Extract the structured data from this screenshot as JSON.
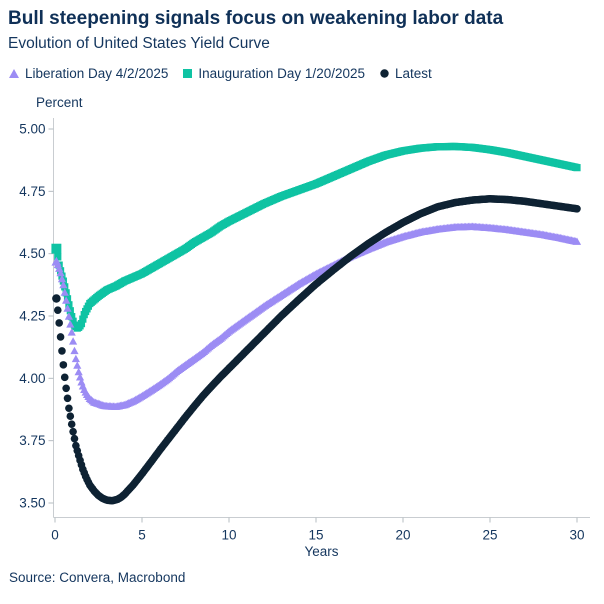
{
  "header": {
    "title": "Bull steepening signals focus on weakening labor data",
    "subtitle": "Evolution of United States Yield Curve"
  },
  "legend": {
    "items": [
      {
        "label": "Liberation Day 4/2/2025",
        "marker": "triangle-icon",
        "color": "#9c8cf4"
      },
      {
        "label": "Inauguration Day 1/20/2025",
        "marker": "square-icon",
        "color": "#0fc3a3"
      },
      {
        "label": "Latest",
        "marker": "circle-icon",
        "color": "#0e2233"
      }
    ]
  },
  "axis": {
    "y_title": "Percent",
    "x_title": "Years"
  },
  "footer": {
    "source": "Source: Convera, Macrobond"
  },
  "colors": {
    "text_navy": "#14365e",
    "title_navy": "#0f3057",
    "axis_gray": "#c9cdd1",
    "tick_gray": "#b6bcc2"
  },
  "chart_data": {
    "type": "line",
    "marker_rendering": "dense-markers",
    "title": "Evolution of United States Yield Curve",
    "xlabel": "Years",
    "ylabel": "Percent",
    "xlim": [
      0,
      30
    ],
    "ylim": [
      3.5,
      5.0
    ],
    "xticks": [
      "0",
      "5",
      "10",
      "15",
      "20",
      "25",
      "30"
    ],
    "yticks": [
      "3.50",
      "3.75",
      "4.00",
      "4.25",
      "4.50",
      "4.75",
      "5.00"
    ],
    "grid": false,
    "legend_position": "top",
    "series": [
      {
        "name": "Inauguration Day 1/20/2025",
        "marker": "square",
        "color": "#0fc3a3",
        "points": [
          [
            0.08,
            4.52
          ],
          [
            0.25,
            4.45
          ],
          [
            0.4,
            4.41
          ],
          [
            0.5,
            4.385
          ],
          [
            0.65,
            4.34
          ],
          [
            0.8,
            4.295
          ],
          [
            0.95,
            4.25
          ],
          [
            1.1,
            4.215
          ],
          [
            1.3,
            4.2
          ],
          [
            1.5,
            4.215
          ],
          [
            1.7,
            4.26
          ],
          [
            2.0,
            4.3
          ],
          [
            2.5,
            4.33
          ],
          [
            3.0,
            4.355
          ],
          [
            3.5,
            4.37
          ],
          [
            4.0,
            4.39
          ],
          [
            4.5,
            4.405
          ],
          [
            5.0,
            4.42
          ],
          [
            5.5,
            4.44
          ],
          [
            6.0,
            4.46
          ],
          [
            6.5,
            4.48
          ],
          [
            7.0,
            4.5
          ],
          [
            7.5,
            4.52
          ],
          [
            8.0,
            4.545
          ],
          [
            8.5,
            4.565
          ],
          [
            9.0,
            4.585
          ],
          [
            9.5,
            4.61
          ],
          [
            10.0,
            4.63
          ],
          [
            11,
            4.665
          ],
          [
            12,
            4.7
          ],
          [
            13,
            4.73
          ],
          [
            14,
            4.755
          ],
          [
            15,
            4.78
          ],
          [
            16,
            4.81
          ],
          [
            17,
            4.84
          ],
          [
            18,
            4.87
          ],
          [
            19,
            4.895
          ],
          [
            20,
            4.912
          ],
          [
            21,
            4.923
          ],
          [
            22,
            4.929
          ],
          [
            23,
            4.93
          ],
          [
            24,
            4.926
          ],
          [
            25,
            4.917
          ],
          [
            26,
            4.905
          ],
          [
            27,
            4.89
          ],
          [
            28,
            4.875
          ],
          [
            29,
            4.86
          ],
          [
            30,
            4.845
          ]
        ]
      },
      {
        "name": "Liberation Day 4/2/2025",
        "marker": "triangle",
        "color": "#9c8cf4",
        "points": [
          [
            0.08,
            4.47
          ],
          [
            0.2,
            4.45
          ],
          [
            0.3,
            4.43
          ],
          [
            0.4,
            4.4
          ],
          [
            0.5,
            4.37
          ],
          [
            0.6,
            4.33
          ],
          [
            0.7,
            4.29
          ],
          [
            0.8,
            4.25
          ],
          [
            0.9,
            4.21
          ],
          [
            1.0,
            4.17
          ],
          [
            1.1,
            4.12
          ],
          [
            1.2,
            4.08
          ],
          [
            1.35,
            4.03
          ],
          [
            1.5,
            3.99
          ],
          [
            1.65,
            3.96
          ],
          [
            1.8,
            3.94
          ],
          [
            2.0,
            3.92
          ],
          [
            2.25,
            3.905
          ],
          [
            2.5,
            3.9
          ],
          [
            2.75,
            3.893
          ],
          [
            3.0,
            3.89
          ],
          [
            3.5,
            3.888
          ],
          [
            4.0,
            3.895
          ],
          [
            4.5,
            3.91
          ],
          [
            5.0,
            3.93
          ],
          [
            5.5,
            3.952
          ],
          [
            6.0,
            3.975
          ],
          [
            6.5,
            4.0
          ],
          [
            7.0,
            4.03
          ],
          [
            7.5,
            4.055
          ],
          [
            8.0,
            4.08
          ],
          [
            8.5,
            4.105
          ],
          [
            9.0,
            4.135
          ],
          [
            9.5,
            4.16
          ],
          [
            10.0,
            4.19
          ],
          [
            11,
            4.24
          ],
          [
            12,
            4.29
          ],
          [
            13,
            4.335
          ],
          [
            14,
            4.38
          ],
          [
            15,
            4.42
          ],
          [
            16,
            4.455
          ],
          [
            17,
            4.49
          ],
          [
            18,
            4.52
          ],
          [
            19,
            4.548
          ],
          [
            20,
            4.57
          ],
          [
            21,
            4.588
          ],
          [
            22,
            4.6
          ],
          [
            23,
            4.608
          ],
          [
            24,
            4.61
          ],
          [
            25,
            4.605
          ],
          [
            26,
            4.598
          ],
          [
            27,
            4.588
          ],
          [
            28,
            4.578
          ],
          [
            29,
            4.565
          ],
          [
            30,
            4.55
          ]
        ]
      },
      {
        "name": "Latest",
        "marker": "circle",
        "color": "#0e2233",
        "points": [
          [
            0.08,
            4.32
          ],
          [
            0.2,
            4.25
          ],
          [
            0.3,
            4.18
          ],
          [
            0.4,
            4.11
          ],
          [
            0.5,
            4.04
          ],
          [
            0.6,
            3.98
          ],
          [
            0.7,
            3.93
          ],
          [
            0.8,
            3.88
          ],
          [
            0.9,
            3.84
          ],
          [
            1.0,
            3.8
          ],
          [
            1.2,
            3.73
          ],
          [
            1.4,
            3.68
          ],
          [
            1.6,
            3.635
          ],
          [
            1.8,
            3.6
          ],
          [
            2.0,
            3.572
          ],
          [
            2.25,
            3.548
          ],
          [
            2.5,
            3.53
          ],
          [
            2.75,
            3.518
          ],
          [
            3.0,
            3.511
          ],
          [
            3.3,
            3.509
          ],
          [
            3.6,
            3.515
          ],
          [
            3.8,
            3.523
          ],
          [
            4.0,
            3.535
          ],
          [
            4.5,
            3.573
          ],
          [
            5.0,
            3.617
          ],
          [
            5.5,
            3.663
          ],
          [
            6.0,
            3.71
          ],
          [
            6.5,
            3.755
          ],
          [
            7.0,
            3.8
          ],
          [
            7.5,
            3.845
          ],
          [
            8.0,
            3.888
          ],
          [
            8.5,
            3.93
          ],
          [
            9.0,
            3.968
          ],
          [
            9.5,
            4.005
          ],
          [
            10.0,
            4.04
          ],
          [
            11,
            4.11
          ],
          [
            12,
            4.18
          ],
          [
            13,
            4.25
          ],
          [
            14,
            4.315
          ],
          [
            15,
            4.378
          ],
          [
            16,
            4.435
          ],
          [
            17,
            4.49
          ],
          [
            18,
            4.54
          ],
          [
            19,
            4.585
          ],
          [
            20,
            4.625
          ],
          [
            21,
            4.66
          ],
          [
            22,
            4.688
          ],
          [
            23,
            4.705
          ],
          [
            24,
            4.715
          ],
          [
            25,
            4.72
          ],
          [
            26,
            4.717
          ],
          [
            27,
            4.71
          ],
          [
            28,
            4.7
          ],
          [
            29,
            4.69
          ],
          [
            30,
            4.68
          ]
        ]
      }
    ]
  }
}
